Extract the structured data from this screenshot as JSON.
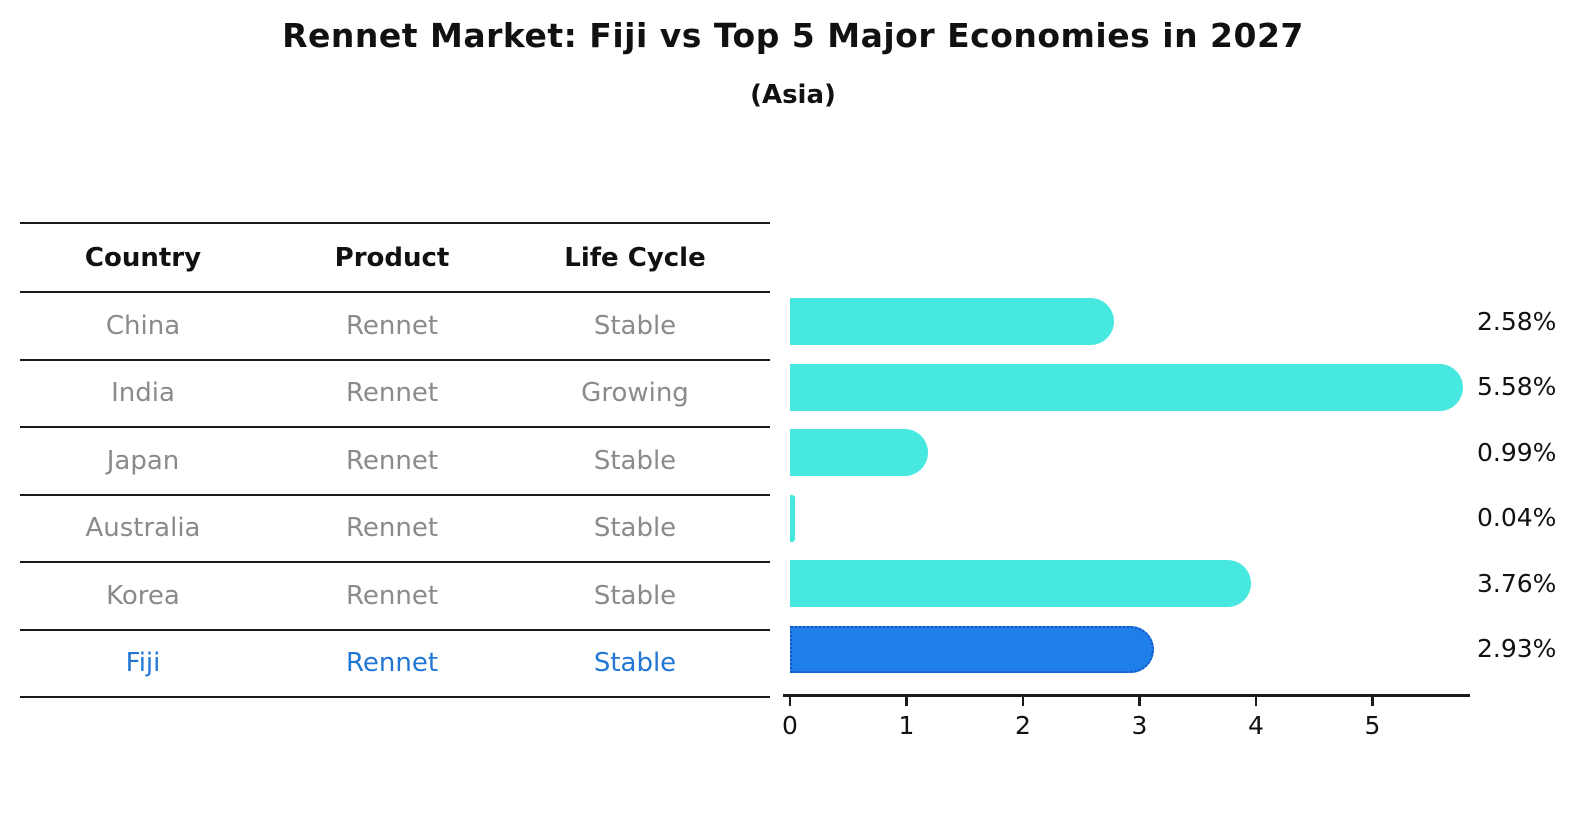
{
  "title": "Rennet Market: Fiji vs Top 5 Major Economies in 2027",
  "subtitle": "(Asia)",
  "table": {
    "headers": [
      "Country",
      "Product",
      "Life Cycle"
    ],
    "rows": [
      {
        "country": "China",
        "product": "Rennet",
        "life_cycle": "Stable",
        "share": "2.58%",
        "highlighted": false
      },
      {
        "country": "India",
        "product": "Rennet",
        "life_cycle": "Growing",
        "share": "5.58%",
        "highlighted": false
      },
      {
        "country": "Japan",
        "product": "Rennet",
        "life_cycle": "Stable",
        "share": "0.99%",
        "highlighted": false
      },
      {
        "country": "Australia",
        "product": "Rennet",
        "life_cycle": "Stable",
        "share": "0.04%",
        "highlighted": false
      },
      {
        "country": "Korea",
        "product": "Rennet",
        "life_cycle": "Stable",
        "share": "3.76%",
        "highlighted": false
      },
      {
        "country": "Fiji",
        "product": "Rennet",
        "life_cycle": "Stable",
        "share": "2.93%",
        "highlighted": true
      }
    ]
  },
  "chart_data": {
    "type": "bar",
    "orientation": "horizontal",
    "title": "Rennet Market: Fiji vs Top 5 Major Economies in 2027",
    "subtitle": "(Asia)",
    "categories": [
      "China",
      "India",
      "Japan",
      "Australia",
      "Korea",
      "Fiji"
    ],
    "values": [
      2.58,
      5.58,
      0.99,
      0.04,
      3.76,
      2.93
    ],
    "value_labels": [
      "2.58%",
      "5.58%",
      "0.99%",
      "0.04%",
      "3.76%",
      "2.93%"
    ],
    "xticks": [
      "0",
      "1",
      "2",
      "3",
      "4",
      "5"
    ],
    "xlim": [
      0,
      5.84
    ],
    "grid": false,
    "legend": false,
    "bar_color": "#47E8E0",
    "highlight_index": 5,
    "highlight_color": "#1E7FE8",
    "highlight_border_color": "#1453C6"
  },
  "colors": {
    "row_text": "#8b8b8b",
    "header_text": "#111111",
    "highlight_text": "#2277D4",
    "axis": "#1a1a1a"
  }
}
